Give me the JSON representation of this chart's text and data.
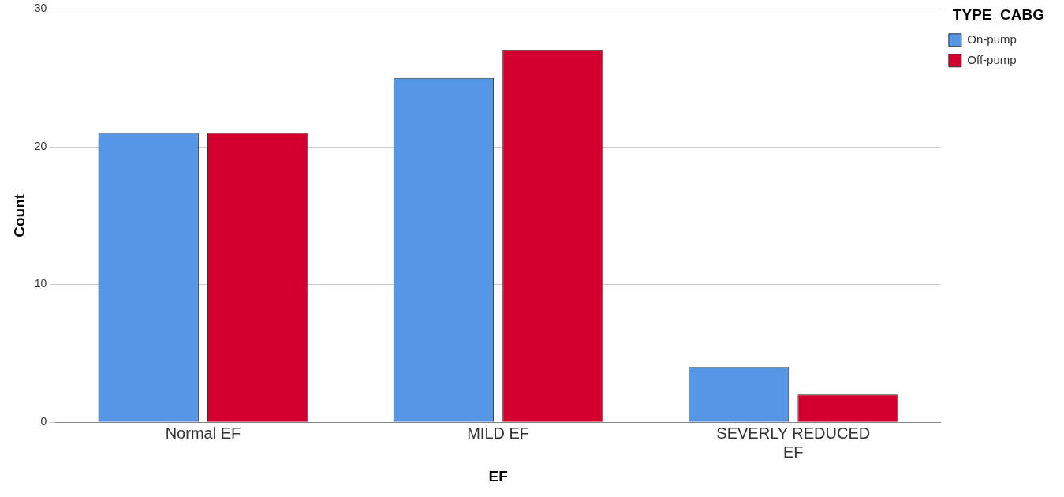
{
  "chart_data": {
    "type": "bar",
    "xlabel": "EF",
    "ylabel": "Count",
    "legend_title": "TYPE_CABG",
    "categories": [
      "Normal EF",
      "MILD EF",
      "SEVERLY REDUCED EF"
    ],
    "series": [
      {
        "name": "On-pump",
        "color": "#5596e6",
        "values": [
          21,
          25,
          4
        ]
      },
      {
        "name": "Off-pump",
        "color": "#d3002f",
        "values": [
          21,
          27,
          2
        ]
      }
    ],
    "ylim": [
      0,
      30
    ],
    "yticks": [
      0,
      10,
      20,
      30
    ],
    "grid": "y",
    "legend": "top right"
  }
}
